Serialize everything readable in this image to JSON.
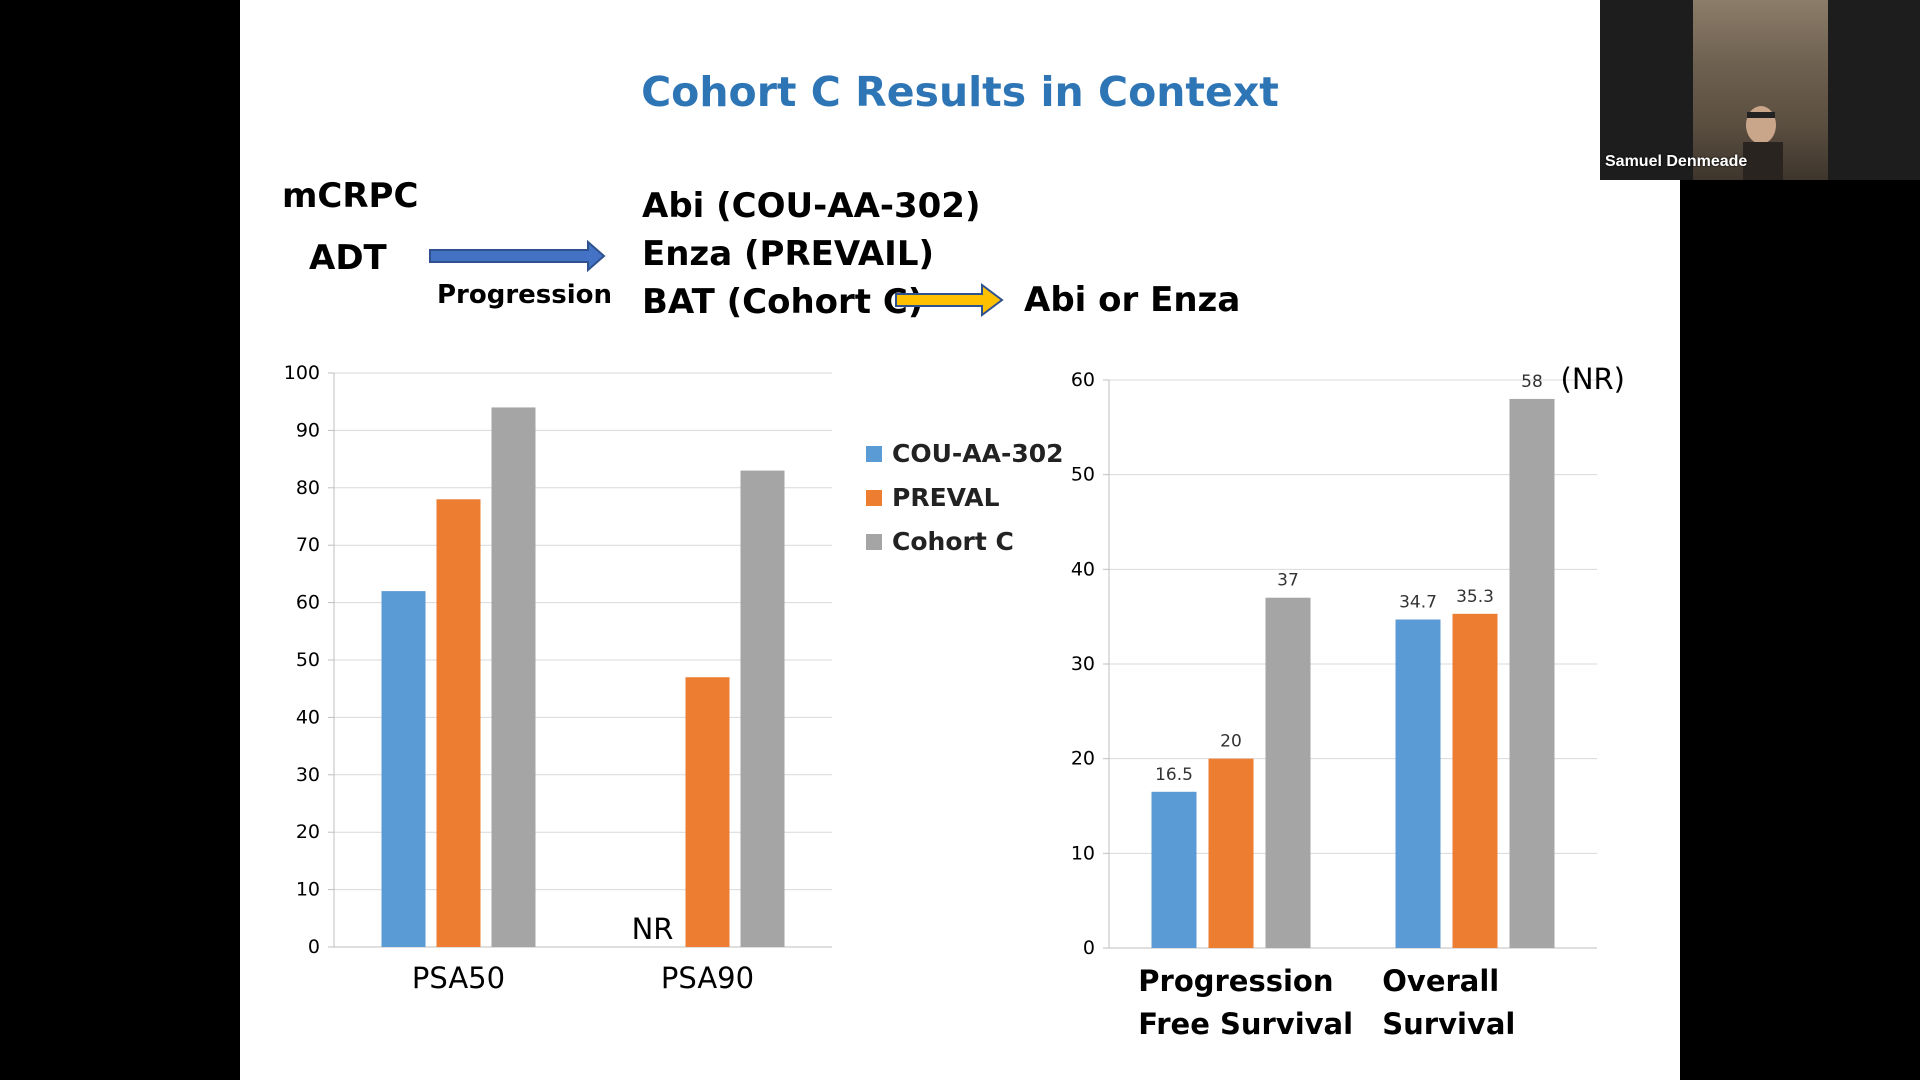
{
  "slide": {
    "title": "Cohort C Results in Context",
    "flow": {
      "mcrpc": "mCRPC",
      "adt": "ADT",
      "progression": "Progression",
      "therapies": [
        "Abi (COU-AA-302)",
        "Enza (PREVAIL)",
        "BAT (Cohort C)"
      ],
      "next": "Abi or Enza",
      "colors": {
        "arrow1": "#4472c4",
        "arrow2": "#ffc000"
      }
    },
    "legend": [
      {
        "label": "COU-AA-302",
        "color": "#5b9bd5"
      },
      {
        "label": "PREVAL",
        "color": "#ed7d31"
      },
      {
        "label": "Cohort C",
        "color": "#a5a5a5"
      }
    ]
  },
  "chart_data": [
    {
      "type": "bar",
      "categories": [
        "PSA50",
        "PSA90"
      ],
      "series": [
        {
          "name": "COU-AA-302",
          "values": [
            62,
            null
          ],
          "color": "#5b9bd5"
        },
        {
          "name": "PREVAL",
          "values": [
            78,
            47
          ],
          "color": "#ed7d31"
        },
        {
          "name": "Cohort C",
          "values": [
            94,
            83
          ],
          "color": "#a5a5a5"
        }
      ],
      "ylim": [
        0,
        100
      ],
      "yticks": [
        0,
        10,
        20,
        30,
        40,
        50,
        60,
        70,
        80,
        90,
        100
      ],
      "annotations": [
        {
          "text": "NR",
          "category": "PSA90",
          "series": "COU-AA-302"
        }
      ],
      "grid": true,
      "legend": "right"
    },
    {
      "type": "bar",
      "categories": [
        "Progression Free Survival",
        "Overall Survival"
      ],
      "category_lines": [
        [
          "Progression",
          "Free Survival"
        ],
        [
          "Overall",
          "Survival"
        ]
      ],
      "series": [
        {
          "name": "COU-AA-302",
          "values": [
            16.5,
            34.7
          ],
          "color": "#5b9bd5"
        },
        {
          "name": "PREVAL",
          "values": [
            20,
            35.3
          ],
          "color": "#ed7d31"
        },
        {
          "name": "Cohort C",
          "values": [
            37,
            58
          ],
          "color": "#a5a5a5"
        }
      ],
      "data_labels": [
        [
          "16.5",
          "20",
          "37"
        ],
        [
          "34.7",
          "35.3",
          "58"
        ]
      ],
      "ylim": [
        0,
        60
      ],
      "yticks": [
        0,
        10,
        20,
        30,
        40,
        50,
        60
      ],
      "annotations": [
        {
          "text": "(NR)",
          "category": "Overall Survival",
          "series": "Cohort C"
        }
      ],
      "grid": true
    }
  ],
  "video": {
    "participant": "Samuel Denmeade"
  }
}
